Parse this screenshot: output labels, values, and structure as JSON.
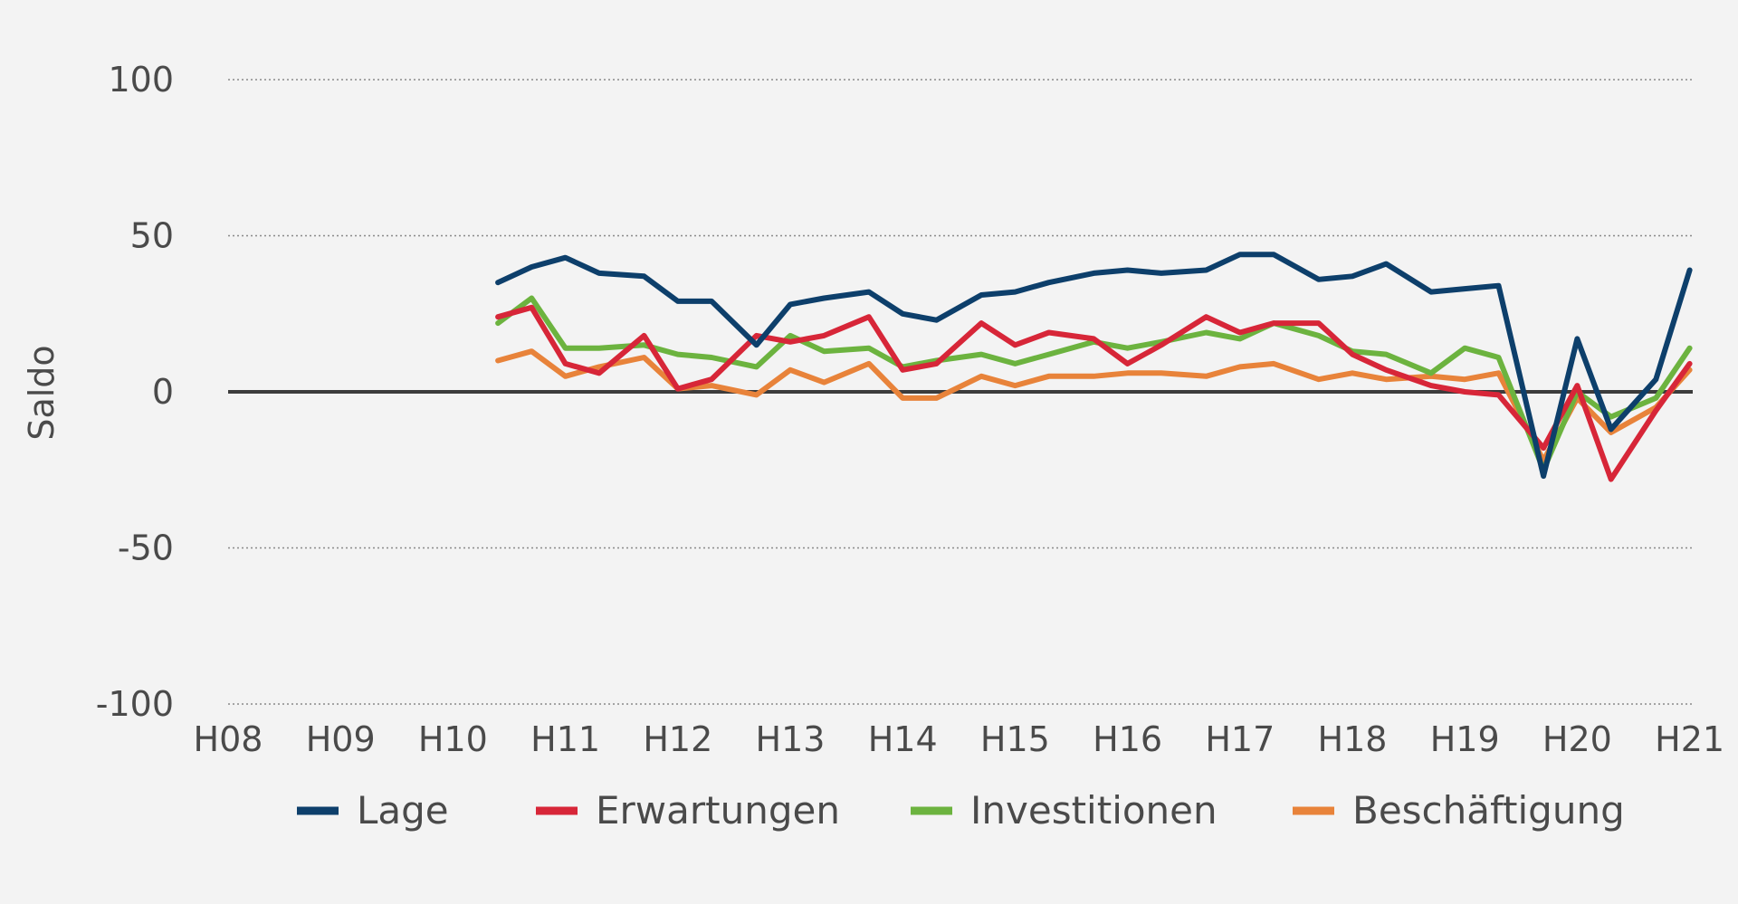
{
  "chart_data": {
    "type": "line",
    "ylabel": "Saldo",
    "xlabel": "",
    "ylim": [
      -100,
      100
    ],
    "yticks": [
      "100",
      "50",
      "0",
      "-50",
      "-100"
    ],
    "xticks": [
      "H08",
      "H09",
      "H10",
      "H11",
      "H12",
      "H13",
      "H14",
      "H15",
      "H16",
      "H17",
      "H18",
      "H19",
      "H20",
      "H21"
    ],
    "grid": true,
    "legend_position": "bottom",
    "x": [
      2.4,
      2.7,
      3.0,
      3.3,
      3.7,
      4.0,
      4.3,
      4.7,
      5.0,
      5.3,
      5.7,
      6.0,
      6.3,
      6.7,
      7.0,
      7.3,
      7.7,
      8.0,
      8.3,
      8.7,
      9.0,
      9.3,
      9.7,
      10.0,
      10.3,
      10.7,
      11.0,
      11.3,
      11.7,
      12.0,
      12.3,
      12.7,
      13.0
    ],
    "series": [
      {
        "name": "Lage",
        "color": "#0d3f6b",
        "values": [
          35,
          40,
          43,
          38,
          37,
          29,
          29,
          15,
          28,
          30,
          32,
          25,
          23,
          31,
          32,
          35,
          38,
          39,
          38,
          39,
          44,
          44,
          36,
          37,
          41,
          32,
          33,
          34,
          -27,
          17,
          -12,
          4,
          39
        ]
      },
      {
        "name": "Erwartungen",
        "color": "#d72638",
        "values": [
          24,
          27,
          9,
          6,
          18,
          1,
          4,
          18,
          16,
          18,
          24,
          7,
          9,
          22,
          15,
          19,
          17,
          9,
          15,
          24,
          19,
          22,
          22,
          12,
          7,
          2,
          0,
          -1,
          -18,
          2,
          -28,
          -6,
          9
        ]
      },
      {
        "name": "Investitionen",
        "color": "#6cb33f",
        "values": [
          22,
          30,
          14,
          14,
          15,
          12,
          11,
          8,
          18,
          13,
          14,
          8,
          10,
          12,
          9,
          12,
          16,
          14,
          16,
          19,
          17,
          22,
          18,
          13,
          12,
          6,
          14,
          11,
          -25,
          0,
          -8,
          -2,
          14
        ]
      },
      {
        "name": "Beschäftigung",
        "color": "#e8833a",
        "values": [
          10,
          13,
          5,
          8,
          11,
          1,
          2,
          -1,
          7,
          3,
          9,
          -2,
          -2,
          5,
          2,
          5,
          5,
          6,
          6,
          5,
          8,
          9,
          4,
          6,
          4,
          5,
          4,
          6,
          -22,
          -2,
          -13,
          -5,
          7
        ]
      }
    ]
  }
}
